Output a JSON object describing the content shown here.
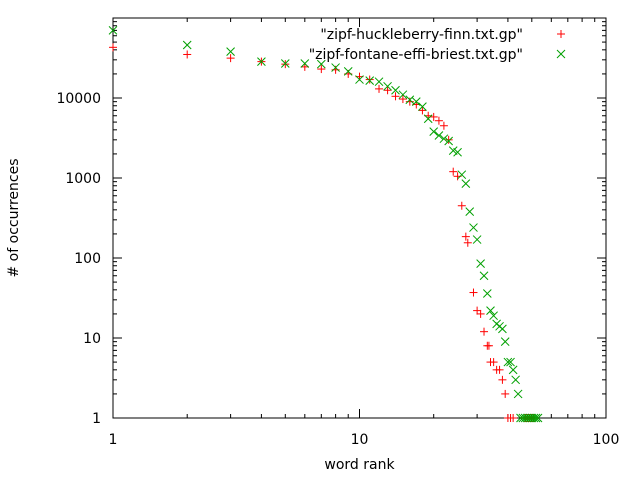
{
  "chart_data": {
    "type": "scatter",
    "xlabel": "word rank",
    "ylabel": "# of occurrences",
    "xscale": "log",
    "yscale": "log",
    "xlim": [
      1,
      100
    ],
    "ylim": [
      1,
      100000
    ],
    "x_ticks": [
      1,
      10,
      100
    ],
    "x_tick_labels": [
      "1",
      "10",
      "100"
    ],
    "y_ticks": [
      1,
      10,
      100,
      1000,
      10000
    ],
    "y_tick_labels": [
      "1",
      "10",
      "100",
      "1000",
      "10000"
    ],
    "grid": false,
    "legend_position": "top-right",
    "series": [
      {
        "name": "\"zipf-huckleberry-finn.txt.gp\"",
        "marker": "plus",
        "color": "#ff0000",
        "points": [
          [
            1,
            43000
          ],
          [
            2,
            35000
          ],
          [
            3,
            31500
          ],
          [
            4,
            28500
          ],
          [
            5,
            26500
          ],
          [
            6,
            24500
          ],
          [
            7,
            23000
          ],
          [
            8,
            22500
          ],
          [
            9,
            20000
          ],
          [
            10,
            18500
          ],
          [
            11,
            17000
          ],
          [
            12,
            13000
          ],
          [
            13,
            12500
          ],
          [
            14,
            10500
          ],
          [
            15,
            9700
          ],
          [
            16,
            9000
          ],
          [
            17,
            8300
          ],
          [
            18,
            7000
          ],
          [
            19,
            6000
          ],
          [
            20,
            5800
          ],
          [
            21,
            5200
          ],
          [
            22,
            4500
          ],
          [
            23,
            3000
          ],
          [
            24,
            1200
          ],
          [
            25,
            1050
          ],
          [
            26,
            450
          ],
          [
            27,
            185
          ],
          [
            27.5,
            155
          ],
          [
            29,
            37
          ],
          [
            30,
            22
          ],
          [
            31,
            20
          ],
          [
            32,
            12
          ],
          [
            33,
            8
          ],
          [
            33.5,
            8
          ],
          [
            34,
            5
          ],
          [
            35,
            5
          ],
          [
            36,
            4
          ],
          [
            37,
            4
          ],
          [
            38,
            3
          ],
          [
            39,
            2
          ],
          [
            40,
            1
          ],
          [
            41,
            1
          ],
          [
            42,
            1
          ],
          [
            47,
            1
          ],
          [
            48,
            1
          ],
          [
            49,
            1
          ],
          [
            50,
            1
          ],
          [
            51,
            1
          ]
        ]
      },
      {
        "name": "\"zipf-fontane-effi-briest.txt.gp\"",
        "marker": "cross",
        "color": "#00a000",
        "points": [
          [
            1,
            70000
          ],
          [
            2,
            46000
          ],
          [
            3,
            38000
          ],
          [
            4,
            28500
          ],
          [
            5,
            27000
          ],
          [
            6,
            27000
          ],
          [
            7,
            26500
          ],
          [
            8,
            24000
          ],
          [
            9,
            21500
          ],
          [
            10,
            17000
          ],
          [
            11,
            16500
          ],
          [
            12,
            16000
          ],
          [
            13,
            14000
          ],
          [
            14,
            12500
          ],
          [
            15,
            11000
          ],
          [
            16,
            9500
          ],
          [
            17,
            9000
          ],
          [
            18,
            7800
          ],
          [
            19,
            5500
          ],
          [
            20,
            3800
          ],
          [
            21,
            3400
          ],
          [
            22,
            3100
          ],
          [
            23,
            2900
          ],
          [
            24,
            2200
          ],
          [
            25,
            2100
          ],
          [
            26,
            1100
          ],
          [
            27,
            850
          ],
          [
            28,
            380
          ],
          [
            29,
            240
          ],
          [
            30,
            170
          ],
          [
            31,
            85
          ],
          [
            32,
            60
          ],
          [
            33,
            36
          ],
          [
            34,
            22
          ],
          [
            35,
            19
          ],
          [
            36,
            15
          ],
          [
            37,
            14
          ],
          [
            38,
            13
          ],
          [
            39,
            9
          ],
          [
            40,
            5
          ],
          [
            41,
            5
          ],
          [
            42,
            4
          ],
          [
            43,
            3
          ],
          [
            44,
            2
          ],
          [
            45,
            1
          ],
          [
            46,
            1
          ],
          [
            47,
            1
          ],
          [
            48,
            1
          ],
          [
            49,
            1
          ],
          [
            50,
            1
          ],
          [
            51,
            1
          ],
          [
            52,
            1
          ],
          [
            53,
            1
          ]
        ]
      }
    ]
  }
}
